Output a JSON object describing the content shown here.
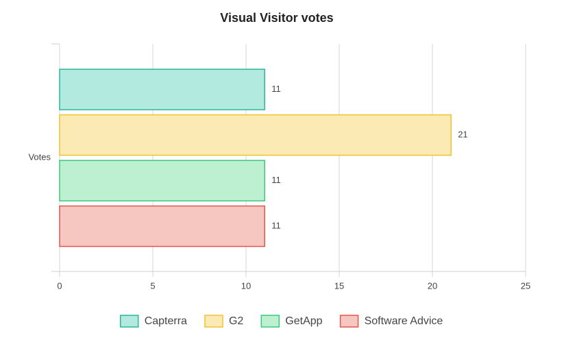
{
  "chart_data": {
    "type": "bar",
    "horizontal": true,
    "title": "Visual Visitor votes",
    "categories": [
      "Votes"
    ],
    "series": [
      {
        "name": "Capterra",
        "color": "#2bb59a",
        "fill": "#b3eae0",
        "values": [
          11
        ]
      },
      {
        "name": "G2",
        "color": "#f0c232",
        "fill": "#fbeab3",
        "values": [
          21
        ]
      },
      {
        "name": "GetApp",
        "color": "#3cc77c",
        "fill": "#bcf0d1",
        "values": [
          11
        ]
      },
      {
        "name": "Software Advice",
        "color": "#e0574a",
        "fill": "#f6c6c1",
        "values": [
          11
        ]
      }
    ],
    "xlim": [
      0,
      25
    ],
    "xticks": [
      0,
      5,
      10,
      15,
      20,
      25
    ],
    "grid": true,
    "data_labels": true,
    "legend": "bottom"
  }
}
